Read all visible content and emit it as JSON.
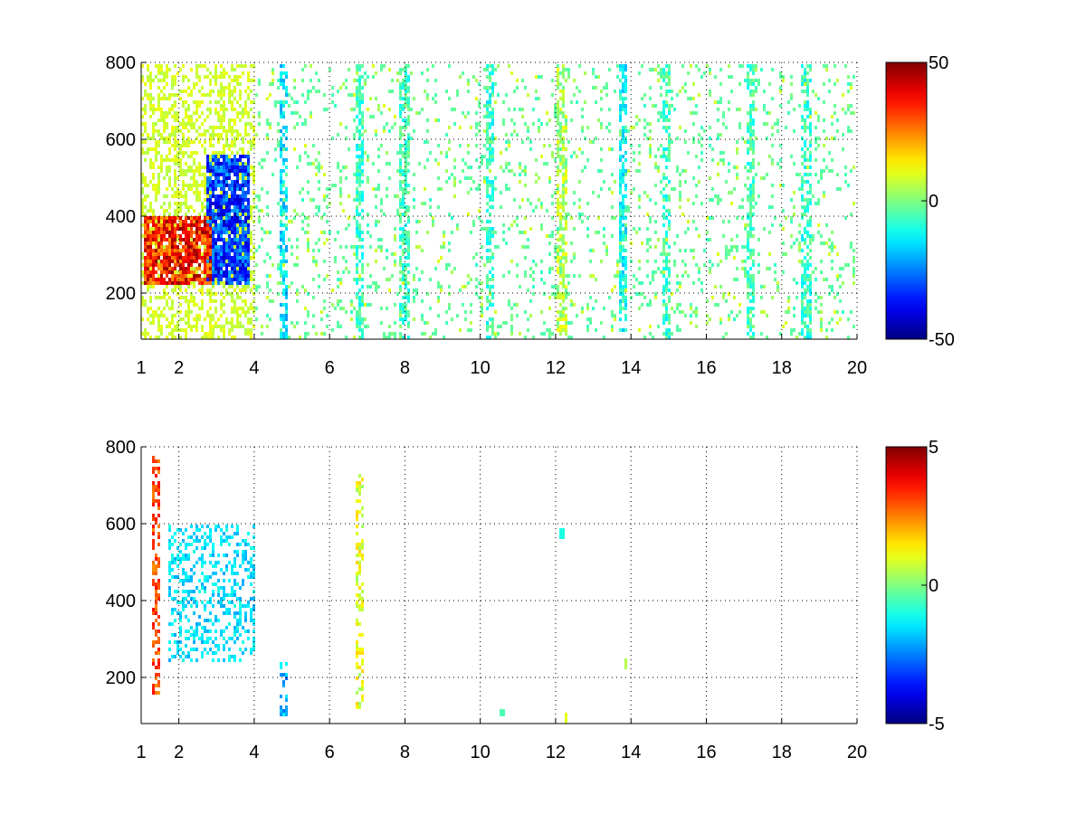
{
  "chart_data": [
    {
      "type": "heatmap",
      "title": "",
      "xlabel": "",
      "ylabel": "",
      "xlim": [
        1,
        20
      ],
      "ylim": [
        80,
        800
      ],
      "x_ticks": [
        1,
        2,
        4,
        6,
        8,
        10,
        12,
        14,
        16,
        18,
        20
      ],
      "x_tick_labels": [
        "1",
        "2",
        "4",
        "6",
        "8",
        "10",
        "12",
        "14",
        "16",
        "18",
        "20"
      ],
      "y_ticks": [
        200,
        400,
        600,
        800
      ],
      "y_tick_labels": [
        "200",
        "400",
        "600",
        "800"
      ],
      "grid": true,
      "colormap": "jet",
      "clim": [
        -50,
        50
      ],
      "colorbar_ticks": [
        -50,
        0,
        50
      ],
      "colorbar_tick_labels": [
        "-50",
        "0",
        "50"
      ],
      "regions": [
        {
          "x": [
            1.1,
            2.9
          ],
          "y": [
            220,
            400
          ],
          "value": 35
        },
        {
          "x": [
            2.7,
            3.9
          ],
          "y": [
            220,
            560
          ],
          "value": -32
        },
        {
          "x": [
            1.0,
            4.0
          ],
          "y": [
            80,
            800
          ],
          "value": 8
        },
        {
          "x": [
            4.0,
            20.0
          ],
          "y": [
            80,
            800
          ],
          "value": -3
        }
      ],
      "column_bands": [
        {
          "x": 4.8,
          "value": -15
        },
        {
          "x": 6.8,
          "value": -8
        },
        {
          "x": 8.0,
          "value": -6
        },
        {
          "x": 10.3,
          "value": -8
        },
        {
          "x": 12.2,
          "value": 5
        },
        {
          "x": 13.8,
          "value": -12
        },
        {
          "x": 15.0,
          "value": -7
        },
        {
          "x": 17.2,
          "value": -6
        },
        {
          "x": 18.7,
          "value": -8
        }
      ]
    },
    {
      "type": "heatmap",
      "title": "",
      "xlabel": "",
      "ylabel": "",
      "xlim": [
        1,
        20
      ],
      "ylim": [
        80,
        800
      ],
      "x_ticks": [
        1,
        2,
        4,
        6,
        8,
        10,
        12,
        14,
        16,
        18,
        20
      ],
      "x_tick_labels": [
        "1",
        "2",
        "4",
        "6",
        "8",
        "10",
        "12",
        "14",
        "16",
        "18",
        "20"
      ],
      "y_ticks": [
        200,
        400,
        600,
        800
      ],
      "y_tick_labels": [
        "200",
        "400",
        "600",
        "800"
      ],
      "grid": true,
      "colormap": "jet",
      "clim": [
        -5,
        5
      ],
      "colorbar_ticks": [
        -5,
        0,
        5
      ],
      "colorbar_tick_labels": [
        "-5",
        "0",
        "5"
      ],
      "regions": [
        {
          "x": [
            1.7,
            4.0
          ],
          "y": [
            240,
            600
          ],
          "value": -1.5
        }
      ],
      "column_bands": [
        {
          "x": 1.4,
          "y": [
            160,
            780
          ],
          "value": 3
        },
        {
          "x": 4.8,
          "y": [
            100,
            240
          ],
          "value": -2
        },
        {
          "x": 6.8,
          "y": [
            120,
            730
          ],
          "value": 1
        }
      ],
      "spots": [
        {
          "x": 12.2,
          "y": 575,
          "value": -1
        },
        {
          "x": 12.3,
          "y": 95,
          "value": 1
        },
        {
          "x": 13.9,
          "y": 235,
          "value": 0.5
        },
        {
          "x": 10.6,
          "y": 110,
          "value": -0.5
        }
      ]
    }
  ]
}
